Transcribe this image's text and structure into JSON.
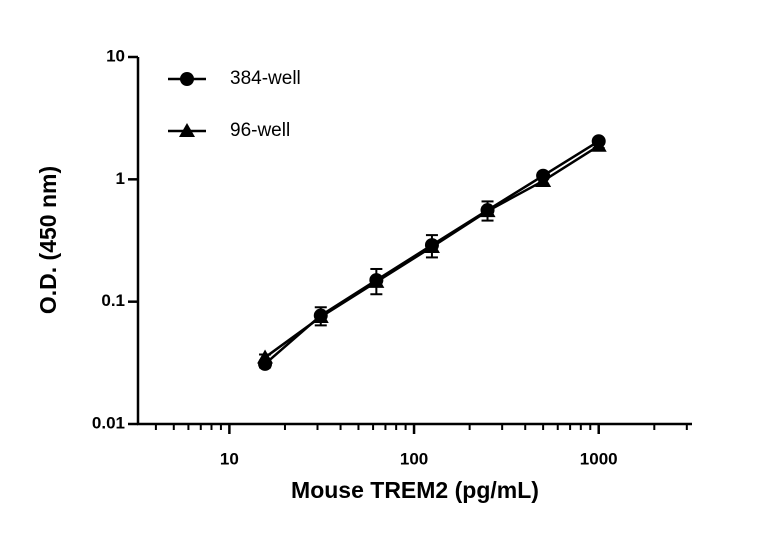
{
  "chart_data": {
    "type": "scatter",
    "xlabel": "Mouse TREM2 (pg/mL)",
    "ylabel": "O.D. (450 nm)",
    "xscale": "log",
    "yscale": "log",
    "xlim": [
      3.2,
      3200
    ],
    "ylim": [
      0.01,
      10
    ],
    "xticks": [
      10,
      100,
      1000
    ],
    "xminorticks": [
      4,
      5,
      6,
      7,
      8,
      9,
      20,
      30,
      40,
      50,
      60,
      70,
      80,
      90,
      200,
      300,
      400,
      500,
      600,
      700,
      800,
      900,
      2000,
      3000
    ],
    "yticks": [
      0.01,
      0.1,
      1,
      10
    ],
    "legend": "top-left",
    "x": [
      15.6,
      31.25,
      62.5,
      125,
      250,
      500,
      1000
    ],
    "series": [
      {
        "name": "384-well",
        "color": "#000000",
        "marker": "circle",
        "values": [
          0.031,
          0.077,
          0.15,
          0.29,
          0.56,
          1.07,
          2.05
        ],
        "errors": [
          0.002,
          0.013,
          0.035,
          0.06,
          0.1,
          0.05,
          0.05
        ]
      },
      {
        "name": "96-well",
        "color": "#000000",
        "marker": "triangle",
        "values": [
          0.035,
          0.075,
          0.145,
          0.28,
          0.55,
          0.97,
          1.88
        ],
        "errors": [
          0.002,
          0.006,
          0.012,
          0.025,
          0.04,
          0.06,
          0.08
        ]
      }
    ]
  }
}
